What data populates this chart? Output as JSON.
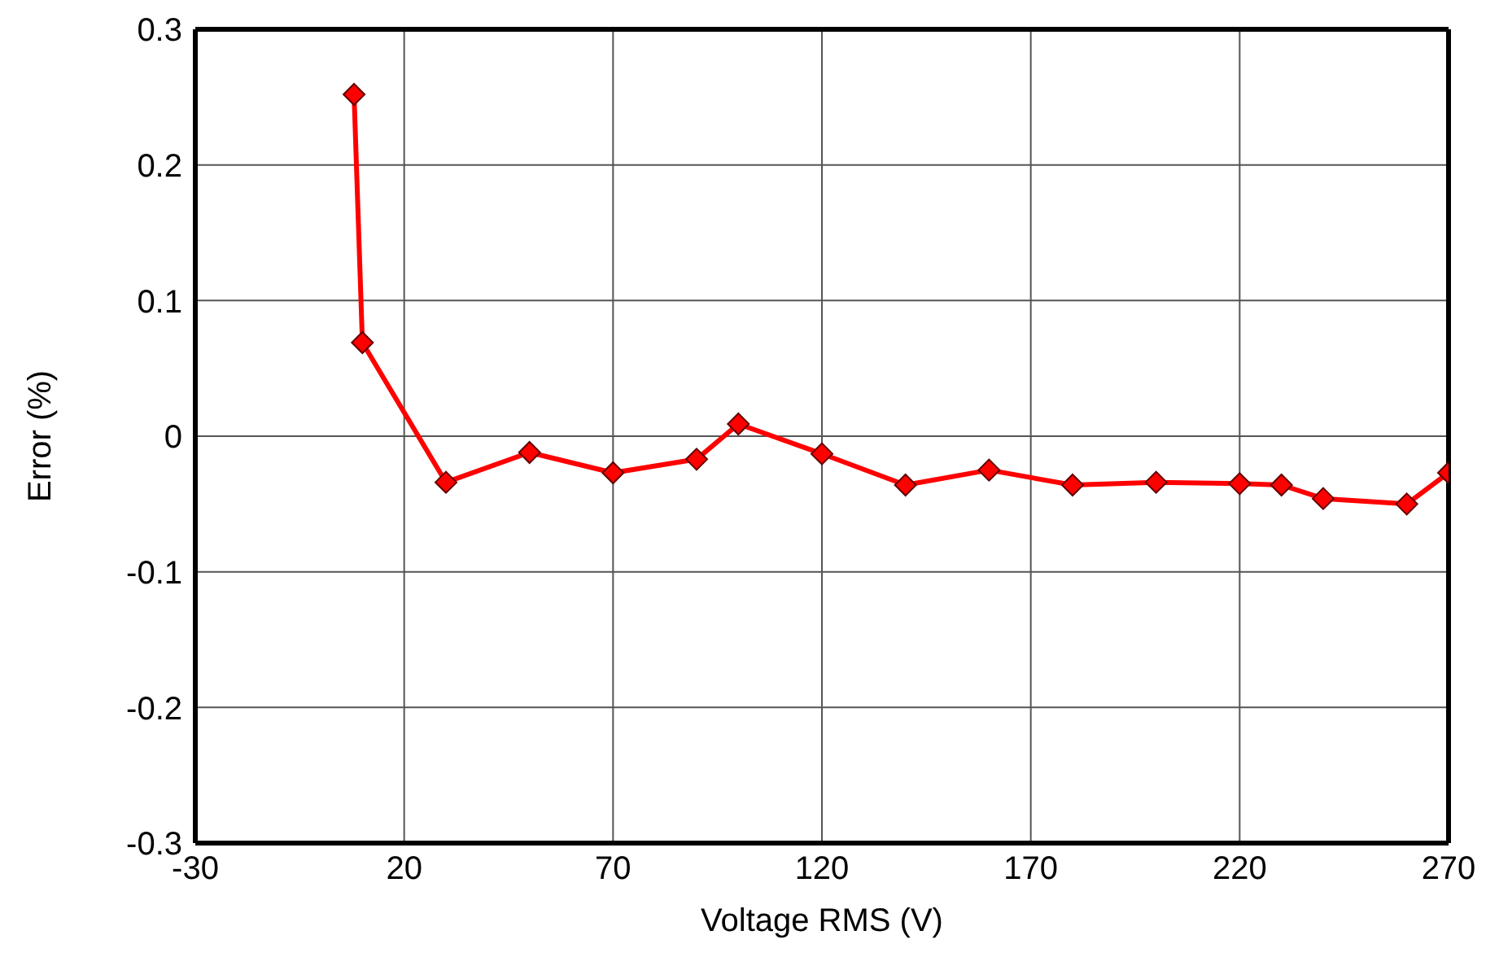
{
  "chart_data": {
    "type": "line",
    "xlabel": "Voltage RMS (V)",
    "ylabel": "Error (%)",
    "x": [
      8,
      10,
      30,
      50,
      70,
      90,
      100,
      120,
      140,
      160,
      180,
      200,
      220,
      230,
      240,
      260,
      270
    ],
    "series": [
      {
        "color": "#ff0000",
        "values": [
          0.252,
          0.069,
          -0.034,
          -0.012,
          -0.027,
          -0.017,
          0.009,
          -0.013,
          -0.036,
          -0.025,
          -0.036,
          -0.034,
          -0.035,
          -0.036,
          -0.046,
          -0.05,
          -0.027
        ]
      }
    ],
    "xlim": [
      -30,
      270
    ],
    "xticks": [
      -30,
      20,
      70,
      120,
      170,
      220,
      270
    ],
    "ylim": [
      -0.3,
      0.3
    ],
    "yticks": [
      -0.3,
      -0.2,
      -0.1,
      0,
      0.1,
      0.2,
      0.3
    ],
    "grid": true,
    "marker": "diamond",
    "line_style": "solid"
  }
}
